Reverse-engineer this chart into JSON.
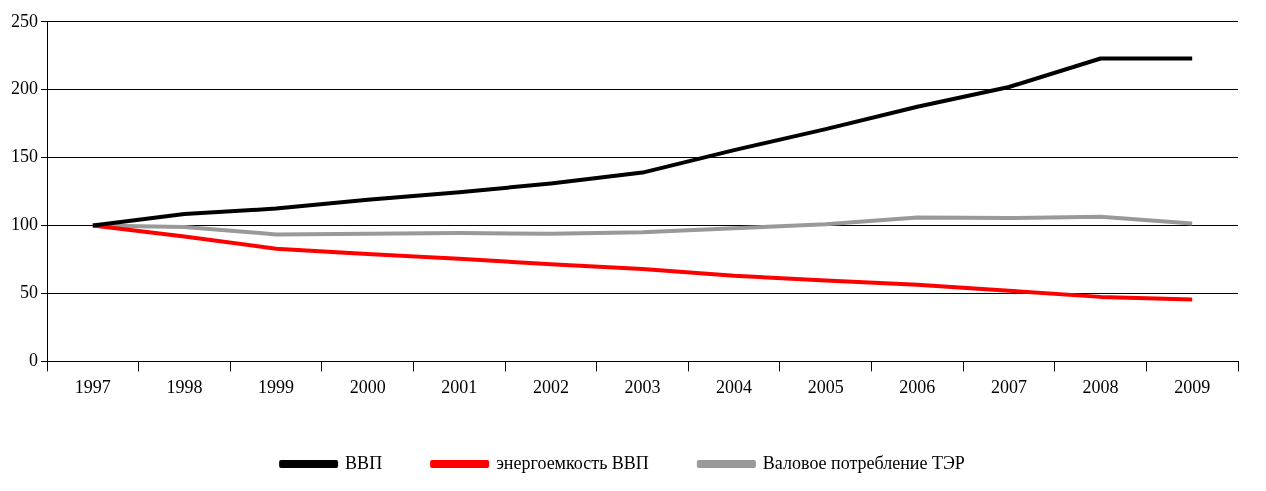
{
  "chart_data": {
    "type": "line",
    "categories": [
      "1997",
      "1998",
      "1999",
      "2000",
      "2001",
      "2002",
      "2003",
      "2004",
      "2005",
      "2006",
      "2007",
      "2008",
      "2009"
    ],
    "series": [
      {
        "name": "ВВП",
        "color": "#000000",
        "values": [
          100,
          108.5,
          112.5,
          119,
          124.5,
          131,
          139,
          155.5,
          171,
          187.5,
          202,
          223,
          223
        ]
      },
      {
        "name": "энергоемкость ВВП",
        "color": "#ff0000",
        "values": [
          100,
          92,
          83,
          79,
          75.5,
          71.5,
          68,
          63,
          59.5,
          56.5,
          52,
          47.5,
          45.5
        ]
      },
      {
        "name": "Валовое потребление ТЭР",
        "color": "#999999",
        "values": [
          100,
          99,
          93.5,
          94,
          94.5,
          94,
          95,
          98,
          101,
          106,
          105.5,
          106.5,
          101.5
        ]
      }
    ],
    "ylim": [
      0,
      250
    ],
    "yticks": [
      0,
      50,
      100,
      150,
      200,
      250
    ],
    "grid": "y",
    "legend": "bottom",
    "marker": "none",
    "line_style": "solid"
  }
}
